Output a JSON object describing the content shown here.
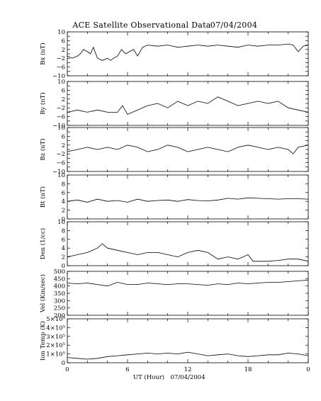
{
  "figure": {
    "title": "ACE Satellite Observational Data",
    "date": "07/04/2004",
    "xlabel": "UT (Hour)",
    "xlabel_date": "07/04/2004",
    "x_ticks": [
      "0",
      "6",
      "12",
      "18",
      "0"
    ]
  },
  "chart_data": [
    {
      "type": "line",
      "id": "bx",
      "ylabel": "Bx (nT)",
      "ylim": [
        -10,
        10
      ],
      "yticks": [
        -10,
        -8,
        -6,
        -4,
        -2,
        0,
        2,
        4,
        6,
        8,
        10
      ],
      "yticklabels": [
        "−10",
        "",
        "−6",
        "",
        "−2",
        "",
        "2",
        "",
        "6",
        "",
        "10"
      ],
      "xlim": [
        0,
        24
      ],
      "grid": false,
      "x": [
        0,
        0.5,
        1,
        1.3,
        1.6,
        2,
        2.3,
        2.6,
        3,
        3.5,
        4,
        4.3,
        4.6,
        5,
        5.4,
        5.8,
        6.2,
        6.6,
        7,
        7.5,
        8,
        9,
        10,
        11,
        12,
        13,
        14,
        15,
        16,
        17,
        18,
        19,
        20,
        21,
        22,
        22.5,
        23,
        23.5,
        24
      ],
      "y": [
        -1,
        -2,
        -1,
        0,
        2,
        1,
        0,
        3,
        -2,
        -3,
        -2,
        -3,
        -2,
        -1,
        2,
        0,
        1,
        2,
        -1,
        3,
        4,
        3.5,
        4,
        3,
        3.5,
        4,
        3.5,
        4,
        3.5,
        3,
        4,
        3.5,
        4,
        4,
        4.5,
        4,
        1,
        3.5,
        4
      ]
    },
    {
      "type": "line",
      "id": "by",
      "ylabel": "By (nT)",
      "ylim": [
        -10,
        10
      ],
      "yticks": [
        -10,
        -8,
        -6,
        -4,
        -2,
        0,
        2,
        4,
        6,
        8,
        10
      ],
      "yticklabels": [
        "−10",
        "",
        "−6",
        "",
        "−2",
        "",
        "2",
        "",
        "6",
        "",
        "10"
      ],
      "xlim": [
        0,
        24
      ],
      "grid": false,
      "x": [
        0,
        1,
        2,
        3,
        4,
        5,
        5.5,
        6,
        7,
        8,
        9,
        10,
        11,
        12,
        13,
        14,
        15,
        16,
        17,
        18,
        19,
        20,
        21,
        22,
        23,
        24
      ],
      "y": [
        -4,
        -3,
        -4,
        -3,
        -4,
        -4,
        -1,
        -5,
        -3,
        -1,
        0,
        -2,
        1,
        -1,
        1,
        0,
        3,
        1,
        -1,
        0,
        1,
        0,
        1,
        -2,
        -3,
        -4
      ]
    },
    {
      "type": "line",
      "id": "bz",
      "ylabel": "Bz (nT)",
      "ylim": [
        -10,
        10
      ],
      "yticks": [
        -10,
        -8,
        -6,
        -4,
        -2,
        0,
        2,
        4,
        6,
        8,
        10
      ],
      "yticklabels": [
        "−10",
        "",
        "−6",
        "",
        "−2",
        "",
        "2",
        "",
        "6",
        "",
        "10"
      ],
      "xlim": [
        0,
        24
      ],
      "grid": false,
      "x": [
        0,
        1,
        2,
        3,
        4,
        5,
        6,
        7,
        8,
        9,
        10,
        11,
        12,
        13,
        14,
        15,
        16,
        17,
        18,
        19,
        20,
        21,
        22,
        22.5,
        23,
        24
      ],
      "y": [
        -1,
        0,
        1,
        0,
        1,
        0,
        2,
        1,
        -1,
        0,
        2,
        1,
        -1,
        0,
        1,
        0,
        -1,
        1,
        2,
        1,
        0,
        1,
        0,
        -2,
        1,
        2
      ]
    },
    {
      "type": "line",
      "id": "bt",
      "ylabel": "Bt (nT)",
      "ylim": [
        0,
        10
      ],
      "yticks": [
        0,
        2,
        4,
        6,
        8,
        10
      ],
      "yticklabels": [
        "0",
        "2",
        "4",
        "6",
        "8",
        "10"
      ],
      "xlim": [
        0,
        24
      ],
      "grid": false,
      "x": [
        0,
        1,
        2,
        3,
        4,
        5,
        6,
        7,
        8,
        9,
        10,
        11,
        12,
        13,
        14,
        15,
        16,
        17,
        18,
        19,
        20,
        21,
        22,
        23,
        24
      ],
      "y": [
        4,
        4.3,
        3.8,
        4.5,
        4,
        4.2,
        3.8,
        4.5,
        4,
        4.2,
        4.3,
        4,
        4.4,
        4.2,
        4.1,
        4.3,
        4.7,
        4.5,
        4.8,
        4.7,
        4.6,
        4.5,
        4.6,
        4.6,
        4.5
      ]
    },
    {
      "type": "line",
      "id": "den",
      "ylabel": "Den (1/cc)",
      "ylim": [
        0,
        10
      ],
      "yticks": [
        0,
        2,
        4,
        6,
        8,
        10
      ],
      "yticklabels": [
        "0",
        "2",
        "4",
        "6",
        "8",
        "10"
      ],
      "xlim": [
        0,
        24
      ],
      "grid": false,
      "x": [
        0,
        1,
        2,
        3,
        3.5,
        4,
        5,
        6,
        7,
        8,
        9,
        10,
        11,
        12,
        13,
        14,
        15,
        16,
        17,
        18,
        18.5,
        19,
        20,
        21,
        22,
        23,
        24
      ],
      "y": [
        2,
        2.5,
        3,
        4,
        5,
        4,
        3.5,
        3,
        2.5,
        3,
        3,
        2.5,
        2,
        3,
        3.5,
        3,
        1.5,
        2,
        1.5,
        2.5,
        1,
        1,
        1,
        1.2,
        1.5,
        1.5,
        1
      ]
    },
    {
      "type": "line",
      "id": "vel",
      "ylabel": "Vel (Km/sec)",
      "ylim": [
        200,
        500
      ],
      "yticks": [
        200,
        250,
        300,
        350,
        400,
        450,
        500
      ],
      "yticklabels": [
        "200",
        "250",
        "300",
        "350",
        "400",
        "450",
        "500"
      ],
      "xlim": [
        0,
        24
      ],
      "grid": false,
      "x": [
        0,
        1,
        2,
        3,
        4,
        5,
        6,
        7,
        8,
        9,
        10,
        11,
        12,
        13,
        14,
        15,
        16,
        17,
        18,
        19,
        20,
        21,
        22,
        23,
        24
      ],
      "y": [
        420,
        415,
        420,
        410,
        400,
        425,
        410,
        410,
        420,
        415,
        410,
        415,
        415,
        410,
        405,
        415,
        410,
        420,
        415,
        420,
        425,
        425,
        430,
        435,
        440
      ]
    },
    {
      "type": "line",
      "id": "temp",
      "ylabel": "Ion Temp (K)",
      "ylim": [
        0,
        500000
      ],
      "yticks": [
        0,
        100000,
        200000,
        300000,
        400000,
        500000
      ],
      "yticklabels": [
        "0",
        "1×10⁵",
        "2×10⁵",
        "3×10⁵",
        "4×10⁵",
        "5×10⁵"
      ],
      "xlim": [
        0,
        24
      ],
      "grid": false,
      "x": [
        0,
        1,
        2,
        3,
        4,
        5,
        6,
        7,
        8,
        9,
        10,
        11,
        12,
        13,
        14,
        15,
        16,
        17,
        18,
        19,
        20,
        21,
        22,
        23,
        24
      ],
      "y": [
        60000,
        50000,
        40000,
        50000,
        70000,
        80000,
        90000,
        100000,
        110000,
        100000,
        110000,
        100000,
        120000,
        100000,
        80000,
        90000,
        100000,
        80000,
        70000,
        80000,
        90000,
        90000,
        110000,
        100000,
        80000
      ]
    }
  ]
}
